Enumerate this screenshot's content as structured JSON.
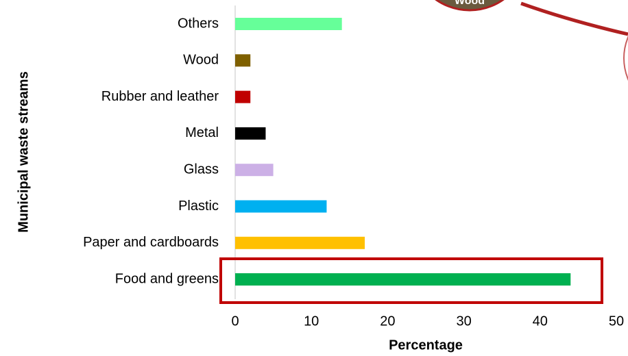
{
  "chart_data": {
    "type": "bar",
    "orientation": "horizontal",
    "categories": [
      "Others",
      "Wood",
      "Rubber and leather",
      "Metal",
      "Glass",
      "Plastic",
      "Paper and cardboards",
      "Food and greens"
    ],
    "values": [
      14,
      2,
      2,
      4,
      5,
      12,
      17,
      44
    ],
    "colors": [
      "#66ff99",
      "#7f6000",
      "#c00000",
      "#000000",
      "#ccb0e6",
      "#00b0f0",
      "#ffc000",
      "#00b050"
    ],
    "xlim": [
      0,
      50
    ],
    "xticks": [
      0,
      10,
      20,
      30,
      40,
      50
    ],
    "x_label": "Percentage",
    "y_label": "Municipal waste streams",
    "annotation": "Wood",
    "grid": false
  }
}
